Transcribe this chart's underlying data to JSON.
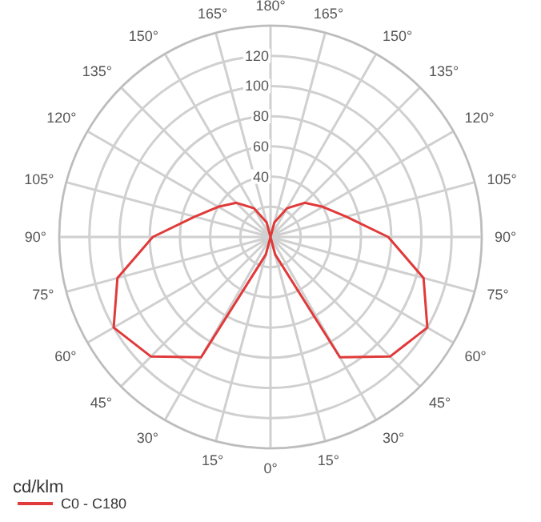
{
  "chart_data": {
    "type": "radar",
    "ylabel": "cd/klm",
    "categories": [
      "180°",
      "165°",
      "150°",
      "135°",
      "120°",
      "105°",
      "90°",
      "75°",
      "60°",
      "45°",
      "30°",
      "15°",
      "0°",
      "15°",
      "30°",
      "45°",
      "60°",
      "75°",
      "90°",
      "105°",
      "120°",
      "135°",
      "150°",
      "165°"
    ],
    "series": [
      {
        "name": "C0 - C180",
        "color": "#e03a3a",
        "values": [
          0,
          10,
          22,
          32,
          40,
          52,
          78,
          105,
          120,
          112,
          92,
          12,
          0,
          12,
          92,
          112,
          120,
          105,
          78,
          52,
          40,
          32,
          22,
          10
        ]
      }
    ],
    "ylim": [
      0,
      140
    ],
    "yticks": [
      40,
      60,
      80,
      100,
      120
    ],
    "grid": true,
    "legend": "bottom left",
    "marker": "none",
    "line_style": "solid"
  }
}
